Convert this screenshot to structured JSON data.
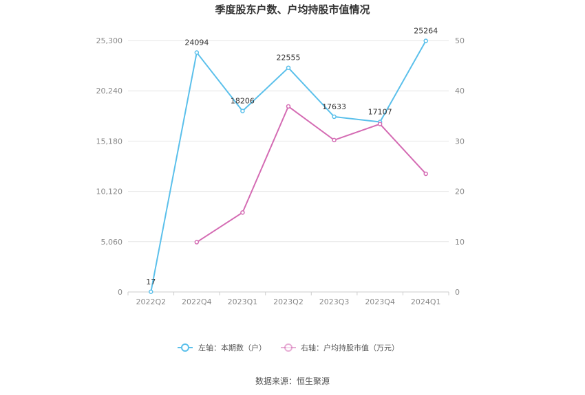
{
  "chart_data": {
    "type": "line",
    "title": "季度股东户数、户均持股市值情况",
    "categories": [
      "2022Q2",
      "2022Q4",
      "2023Q1",
      "2023Q2",
      "2023Q3",
      "2023Q4",
      "2024Q1"
    ],
    "left_axis": {
      "ticks": [
        "0",
        "5,060",
        "10,120",
        "15,180",
        "20,240",
        "25,300"
      ],
      "ylim": [
        0,
        25300
      ]
    },
    "right_axis": {
      "ticks": [
        "0",
        "10",
        "20",
        "30",
        "40",
        "50"
      ],
      "ylim": [
        0,
        50
      ]
    },
    "series": [
      {
        "name": "左轴：本期数（户）",
        "axis": "left",
        "color": "#5bc0eb",
        "values": [
          17,
          24094,
          18206,
          22555,
          17633,
          17107,
          25264
        ],
        "labels": [
          "17",
          "24094",
          "18206",
          "22555",
          "17633",
          "17107",
          "25264"
        ]
      },
      {
        "name": "右轴：户均持股市值（万元）",
        "axis": "right",
        "color": "#d46bb3",
        "values": [
          null,
          9.9,
          15.8,
          36.9,
          30.2,
          33.4,
          23.5
        ]
      }
    ],
    "grid": true,
    "legend_position": "bottom"
  },
  "footer": {
    "source": "数据来源：恒生聚源"
  }
}
